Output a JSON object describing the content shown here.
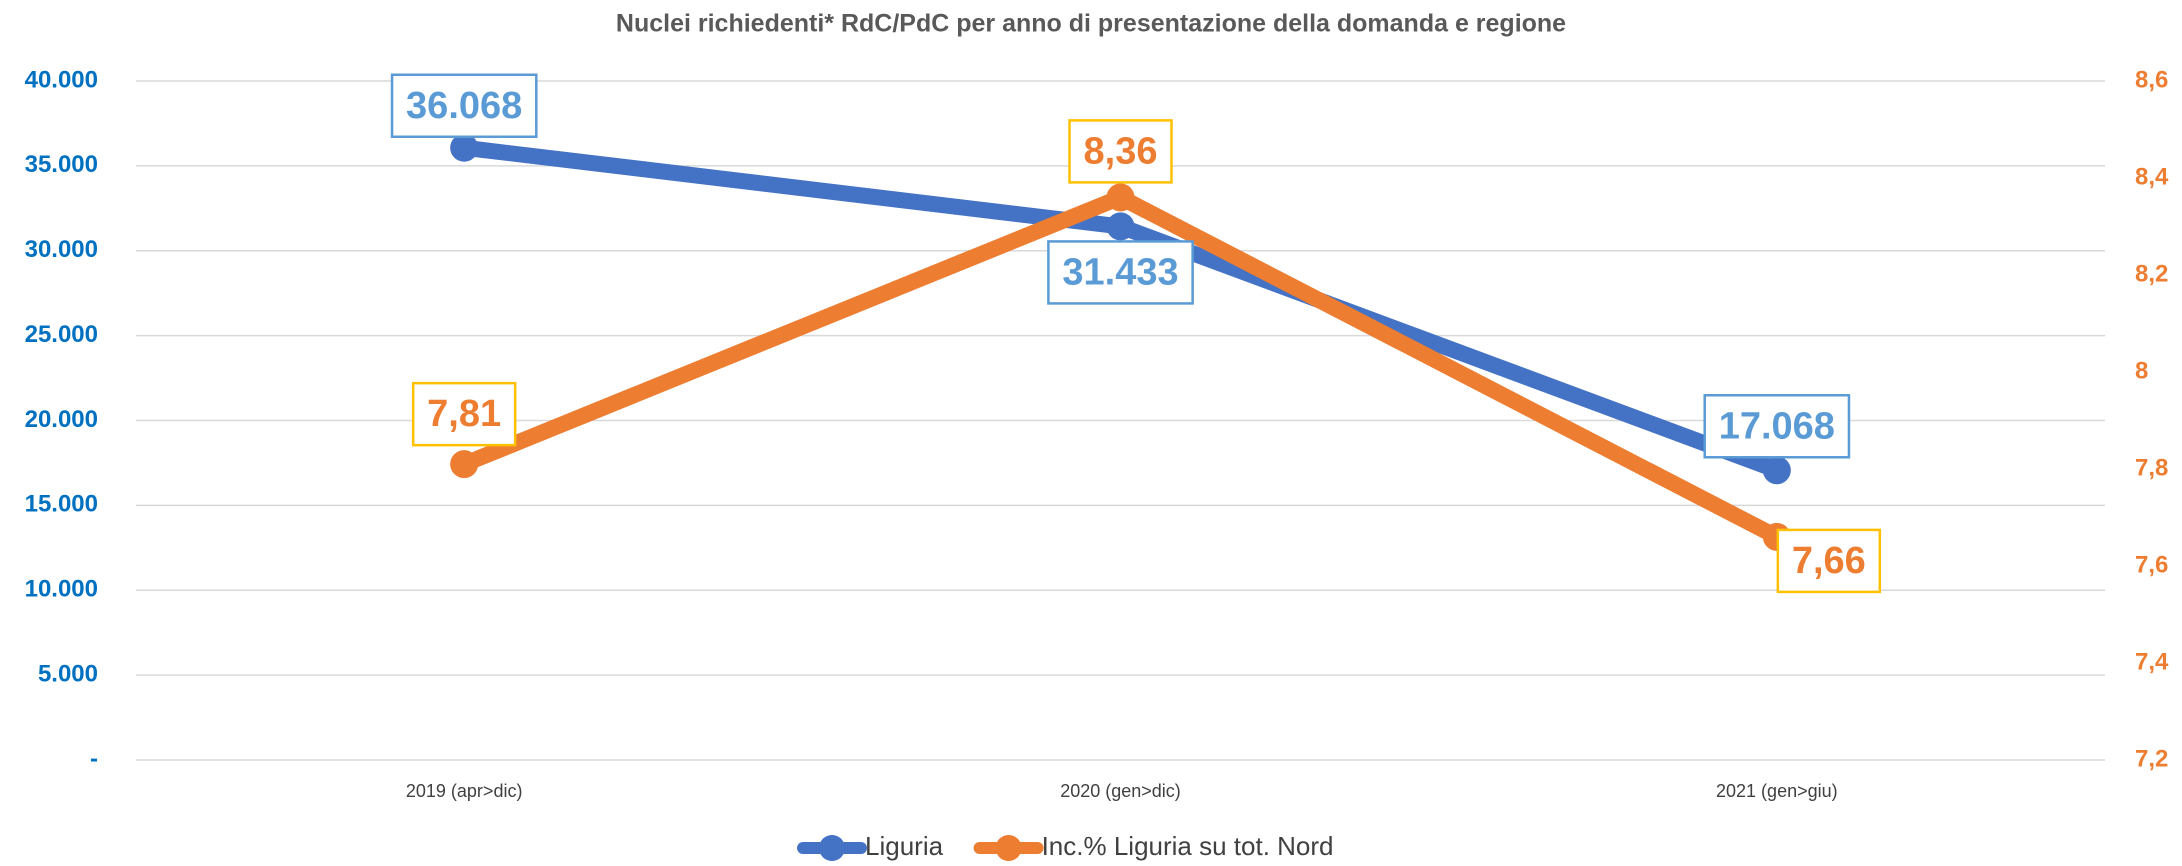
{
  "chart_data": {
    "type": "line",
    "title": "Nuclei richiedenti* RdC/PdC per anno di presentazione della domanda e regione",
    "categories": [
      "2019  (apr>dic)",
      "2020 (gen>dic)",
      "2021 (gen>giu)"
    ],
    "series": [
      {
        "name": "Liguria",
        "color": "#4472c4",
        "values": [
          36068,
          31433,
          17068
        ],
        "value_labels": [
          "36.068",
          "31.433",
          "17.068"
        ]
      },
      {
        "name": "Inc.% Liguria su tot. Nord",
        "color": "#ed7d31",
        "axis": "y2",
        "values": [
          7.81,
          8.36,
          7.66
        ],
        "value_labels": [
          "7,81",
          "8,36",
          "7,66"
        ]
      }
    ],
    "ylim": [
      0,
      40000
    ],
    "yticks": [
      {
        "value": 0,
        "label": "-"
      },
      {
        "value": 5000,
        "label": "5.000"
      },
      {
        "value": 10000,
        "label": "10.000"
      },
      {
        "value": 15000,
        "label": "15.000"
      },
      {
        "value": 20000,
        "label": "20.000"
      },
      {
        "value": 25000,
        "label": "25.000"
      },
      {
        "value": 30000,
        "label": "30.000"
      },
      {
        "value": 35000,
        "label": "35.000"
      },
      {
        "value": 40000,
        "label": "40.000"
      }
    ],
    "y2lim": [
      7.2,
      8.6
    ],
    "y2ticks": [
      {
        "value": 7.2,
        "label": "7,2"
      },
      {
        "value": 7.4,
        "label": "7,4"
      },
      {
        "value": 7.6,
        "label": "7,6"
      },
      {
        "value": 7.8,
        "label": "7,8"
      },
      8,
      {
        "value": 8.2,
        "label": "8,2"
      },
      {
        "value": 8.4,
        "label": "8,4"
      },
      {
        "value": 8.6,
        "label": "8,6"
      }
    ],
    "grid": true,
    "legend": "bottom"
  }
}
